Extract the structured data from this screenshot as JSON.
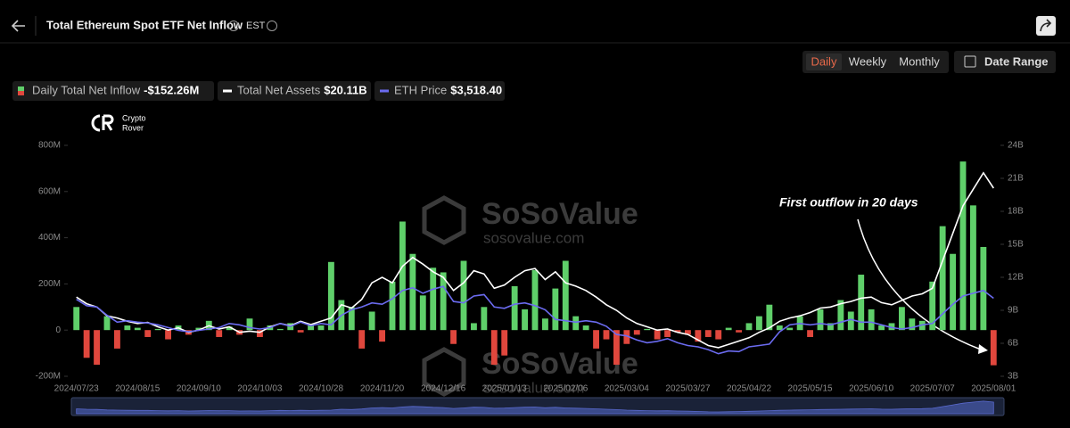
{
  "header": {
    "title": "Total Ethereum Spot ETF Net Inflow",
    "timezone": "EST"
  },
  "tabs": [
    "Daily",
    "Weekly",
    "Monthly"
  ],
  "date_range": "Date Range",
  "logo": [
    "Crypto",
    "Rover"
  ],
  "watermark": [
    "SoSoValue",
    "sosovalue.com"
  ],
  "chart_data": {
    "type": "bar",
    "annotation": "First outflow in 20 days",
    "categories": [
      "2024/07/23",
      null,
      null,
      null,
      null,
      null,
      "2024/08/15",
      null,
      null,
      null,
      null,
      null,
      "2024/09/10",
      null,
      null,
      null,
      null,
      null,
      "2024/10/03",
      null,
      null,
      null,
      null,
      null,
      "2024/10/28",
      null,
      null,
      null,
      null,
      null,
      "2024/11/20",
      null,
      null,
      null,
      null,
      null,
      "2024/12/16",
      null,
      null,
      null,
      null,
      null,
      "2025/01/13",
      null,
      null,
      null,
      null,
      null,
      "2025/02/06",
      null,
      null,
      null,
      null,
      null,
      "2025/03/04",
      null,
      null,
      null,
      null,
      null,
      "2025/03/27",
      null,
      null,
      null,
      null,
      null,
      "2025/04/22",
      null,
      null,
      null,
      null,
      null,
      "2025/05/15",
      null,
      null,
      null,
      null,
      null,
      "2025/06/10",
      null,
      null,
      null,
      null,
      null,
      "2025/07/07",
      null,
      null,
      null,
      null,
      null,
      "2025/08/01"
    ],
    "series": [
      {
        "name": "Daily Total Net Inflow",
        "legend_value": "-$152.26M",
        "color_positive": "#5fcf6a",
        "color_negative": "#e0473d",
        "values": [
          100,
          -120,
          -150,
          60,
          -80,
          20,
          10,
          -30,
          5,
          -40,
          20,
          -20,
          10,
          40,
          -30,
          15,
          -20,
          50,
          -30,
          20,
          5,
          30,
          -10,
          20,
          20,
          295,
          130,
          100,
          -80,
          80,
          -50,
          210,
          470,
          330,
          150,
          270,
          250,
          -60,
          300,
          30,
          100,
          -150,
          -110,
          190,
          90,
          260,
          50,
          180,
          300,
          60,
          20,
          -80,
          -40,
          -150,
          -60,
          -20,
          5,
          -40,
          -30,
          -10,
          -20,
          -50,
          -30,
          -40,
          10,
          -10,
          30,
          60,
          110,
          20,
          10,
          60,
          -30,
          90,
          30,
          130,
          80,
          240,
          90,
          20,
          30,
          100,
          50,
          40,
          210,
          450,
          330,
          730,
          540,
          360,
          -152.26
        ]
      },
      {
        "name": "Total Net Assets",
        "legend_value": "$20.11B",
        "color": "#ffffff",
        "axis": "y2",
        "values": [
          10.2,
          9.6,
          9.3,
          8.5,
          8.3,
          8.0,
          7.8,
          7.9,
          7.5,
          7.2,
          7.4,
          7.0,
          7.2,
          7.6,
          7.3,
          7.5,
          7.0,
          7.1,
          7.0,
          7.5,
          7.8,
          7.6,
          8.0,
          7.7,
          8.0,
          8.3,
          9.5,
          9.2,
          10.0,
          11.5,
          12.0,
          11.5,
          13.0,
          13.8,
          13.2,
          12.5,
          12.0,
          10.8,
          11.5,
          12.6,
          12.3,
          11.0,
          11.3,
          12.0,
          12.6,
          12.8,
          11.8,
          12.5,
          11.5,
          11.2,
          10.8,
          10.2,
          9.5,
          9.0,
          8.3,
          7.8,
          7.5,
          7.2,
          7.3,
          7.0,
          6.8,
          6.3,
          5.8,
          5.6,
          5.9,
          6.2,
          6.5,
          7.0,
          7.4,
          8.0,
          8.3,
          8.5,
          8.8,
          9.2,
          9.3,
          9.6,
          9.8,
          10.1,
          10.2,
          9.7,
          9.5,
          9.9,
          10.3,
          10.5,
          11.0,
          13.5,
          16.0,
          18.5,
          20.0,
          21.5,
          20.11
        ]
      },
      {
        "name": "ETH Price",
        "legend_value": "$3,518.40",
        "color": "#6b6bf0",
        "axis": "y3",
        "values": [
          3480,
          3250,
          3200,
          2900,
          2650,
          2700,
          2650,
          2620,
          2550,
          2450,
          2350,
          2300,
          2350,
          2400,
          2450,
          2600,
          2550,
          2450,
          2400,
          2450,
          2600,
          2500,
          2650,
          2520,
          2600,
          2550,
          2900,
          3100,
          3200,
          3350,
          3300,
          3500,
          3800,
          3900,
          3700,
          3850,
          3950,
          3400,
          3350,
          3600,
          3650,
          3200,
          3150,
          3300,
          3350,
          3250,
          3100,
          2750,
          2700,
          2650,
          2700,
          2650,
          2500,
          2200,
          2150,
          2000,
          1900,
          1950,
          2050,
          1900,
          1800,
          1750,
          1650,
          1500,
          1600,
          1580,
          1750,
          1800,
          1850,
          2300,
          2550,
          2600,
          2550,
          2600,
          2550,
          2650,
          2750,
          2650,
          2650,
          2550,
          2450,
          2400,
          2450,
          2550,
          2600,
          2950,
          3300,
          3600,
          3700,
          3800,
          3518.4
        ]
      }
    ],
    "ylim": [
      -200,
      800
    ],
    "yticks": [
      {
        "value": -200,
        "label": "-200M"
      },
      {
        "value": 0,
        "label": "0"
      },
      {
        "value": 200,
        "label": "200M"
      },
      {
        "value": 400,
        "label": "400M"
      },
      {
        "value": 600,
        "label": "600M"
      },
      {
        "value": 800,
        "label": "800M"
      }
    ],
    "y2lim": [
      3,
      24
    ],
    "y2ticks": [
      {
        "value": 3,
        "label": "3B"
      },
      {
        "value": 6,
        "label": "6B"
      },
      {
        "value": 9,
        "label": "9B"
      },
      {
        "value": 12,
        "label": "12B"
      },
      {
        "value": 15,
        "label": "15B"
      },
      {
        "value": 18,
        "label": "18B"
      },
      {
        "value": 21,
        "label": "21B"
      },
      {
        "value": 24,
        "label": "24B"
      }
    ],
    "y3lim": [
      680,
      9080
    ]
  }
}
